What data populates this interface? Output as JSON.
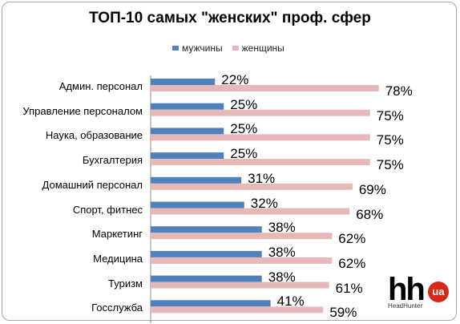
{
  "chart_data": {
    "type": "bar",
    "orientation": "horizontal",
    "title": "ТОП-10 самых \"женских\" проф. сфер",
    "legend_position": "top",
    "categories": [
      "Админ. персонал",
      "Управление персоналом",
      "Наука, образование",
      "Бухгалтерия",
      "Домашний персонал",
      "Спорт, фитнес",
      "Маркетинг",
      "Медицина",
      "Туризм",
      "Госслужба"
    ],
    "series": [
      {
        "name": "мужчины",
        "color": "#4f81bd",
        "values": [
          22,
          25,
          25,
          25,
          31,
          32,
          38,
          38,
          38,
          41
        ],
        "labels": [
          "22%",
          "25%",
          "25%",
          "25%",
          "31%",
          "32%",
          "38%",
          "38%",
          "38%",
          "41%"
        ]
      },
      {
        "name": "женщины",
        "color": "#e6b9b8",
        "values": [
          78,
          75,
          75,
          75,
          69,
          68,
          62,
          62,
          61,
          59
        ],
        "labels": [
          "78%",
          "75%",
          "75%",
          "75%",
          "69%",
          "68%",
          "62%",
          "62%",
          "61%",
          "59%"
        ]
      }
    ],
    "xlim": [
      0,
      100
    ],
    "grid": false
  },
  "logo": {
    "text": "hh",
    "badge": "ua",
    "subtitle": "HeadHunter"
  }
}
